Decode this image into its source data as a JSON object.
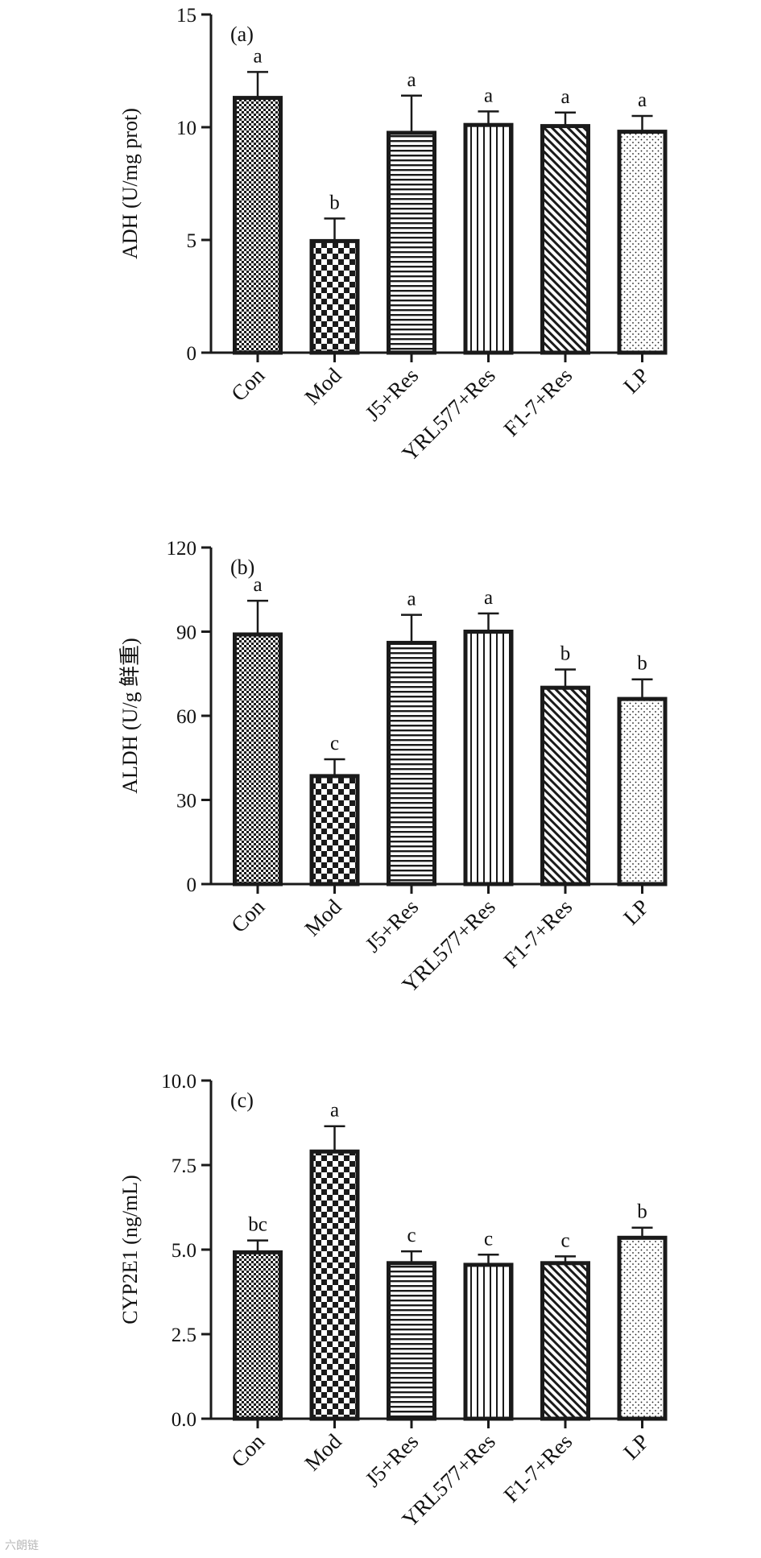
{
  "watermark": "六朗链",
  "colors": {
    "bar_stroke": "#1a1a1a",
    "axis": "#1a1a1a",
    "background": "#ffffff"
  },
  "chart_data": [
    {
      "type": "bar",
      "panel": "(a)",
      "title": "",
      "xlabel": "",
      "ylabel": "ADH (U/mg prot)",
      "ylim": [
        0,
        15
      ],
      "yticks": [
        0,
        5,
        10,
        15
      ],
      "ytick_labels": [
        "0",
        "5",
        "10",
        "15"
      ],
      "categories": [
        "Con",
        "Mod",
        "J5+Res",
        "YRL577+Res",
        "F1-7+Res",
        "LP"
      ],
      "patterns": [
        "fine-checker",
        "checker",
        "horizontal-lines",
        "vertical-lines",
        "diagonal-lines",
        "dots"
      ],
      "values": [
        11.3,
        4.95,
        9.75,
        10.1,
        10.05,
        9.8
      ],
      "errors": [
        1.15,
        1.0,
        1.65,
        0.6,
        0.6,
        0.7
      ],
      "significance": [
        "a",
        "b",
        "a",
        "a",
        "a",
        "a"
      ],
      "grid": false,
      "legend": "none"
    },
    {
      "type": "bar",
      "panel": "(b)",
      "title": "",
      "xlabel": "",
      "ylabel": "ALDH (U/g 鲜重)",
      "ylim": [
        0,
        120
      ],
      "yticks": [
        0,
        30,
        60,
        90,
        120
      ],
      "ytick_labels": [
        "0",
        "30",
        "60",
        "90",
        "120"
      ],
      "categories": [
        "Con",
        "Mod",
        "J5+Res",
        "YRL577+Res",
        "F1-7+Res",
        "LP"
      ],
      "patterns": [
        "fine-checker",
        "checker",
        "horizontal-lines",
        "vertical-lines",
        "diagonal-lines",
        "dots"
      ],
      "values": [
        89,
        38.5,
        86,
        90,
        70,
        66
      ],
      "errors": [
        12,
        6,
        10,
        6.5,
        6.5,
        7
      ],
      "significance": [
        "a",
        "c",
        "a",
        "a",
        "b",
        "b"
      ],
      "grid": false,
      "legend": "none"
    },
    {
      "type": "bar",
      "panel": "(c)",
      "title": "",
      "xlabel": "",
      "ylabel": "CYP2E1 (ng/mL)",
      "ylim": [
        0,
        10
      ],
      "yticks": [
        0,
        2.5,
        5,
        7.5,
        10
      ],
      "ytick_labels": [
        "0.0",
        "2.5",
        "5.0",
        "7.5",
        "10.0"
      ],
      "categories": [
        "Con",
        "Mod",
        "J5+Res",
        "YRL577+Res",
        "F1-7+Res",
        "LP"
      ],
      "patterns": [
        "fine-checker",
        "checker",
        "horizontal-lines",
        "vertical-lines",
        "diagonal-lines",
        "dots"
      ],
      "values": [
        4.92,
        7.9,
        4.6,
        4.55,
        4.6,
        5.35
      ],
      "errors": [
        0.35,
        0.75,
        0.35,
        0.3,
        0.2,
        0.3
      ],
      "significance": [
        "bc",
        "a",
        "c",
        "c",
        "c",
        "b"
      ],
      "grid": false,
      "legend": "none"
    }
  ]
}
